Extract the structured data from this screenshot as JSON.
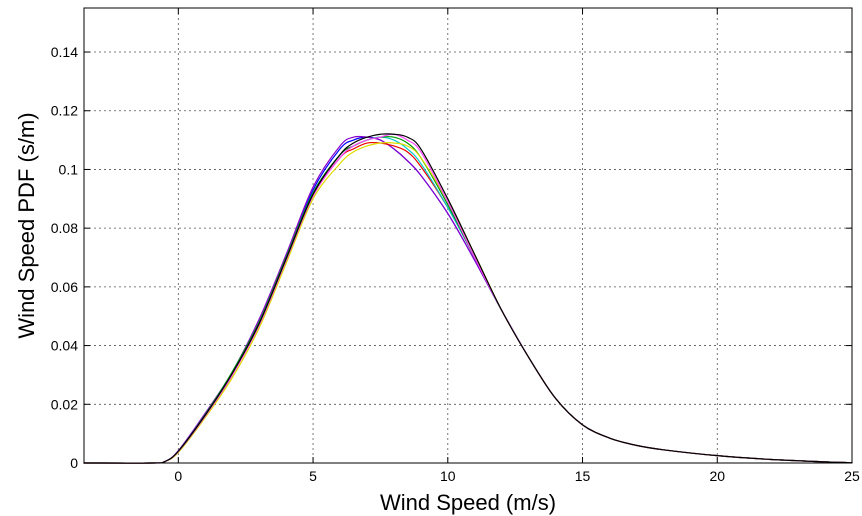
{
  "chart_data": {
    "type": "line",
    "title": "",
    "xlabel": "Wind Speed (m/s)",
    "ylabel": "Wind Speed PDF (s/m)",
    "xlim": [
      -3.5,
      25
    ],
    "ylim": [
      0,
      0.155
    ],
    "x_ticks": [
      0,
      5,
      10,
      15,
      20,
      25
    ],
    "x_tick_labels": [
      "0",
      "5",
      "10",
      "15",
      "20",
      "25"
    ],
    "y_ticks": [
      0,
      0.02,
      0.04,
      0.06,
      0.08,
      0.1,
      0.12,
      0.14
    ],
    "y_tick_labels": [
      "0",
      "0.02",
      "0.04",
      "0.06",
      "0.08",
      "0.1",
      "0.12",
      "0.14"
    ],
    "grid": true,
    "legend": "none",
    "series": [
      {
        "color": "#0000ff",
        "x": [
          -3.5,
          -1,
          -0.5,
          0,
          1,
          2,
          3,
          4,
          5,
          6,
          6.5,
          7,
          7.5,
          8,
          8.5,
          9,
          10,
          11,
          12,
          13,
          14,
          15,
          16,
          17,
          18,
          20,
          22,
          24,
          25
        ],
        "y": [
          0,
          0,
          0.0005,
          0.004,
          0.016,
          0.03,
          0.048,
          0.07,
          0.093,
          0.107,
          0.11,
          0.111,
          0.11,
          0.107,
          0.103,
          0.098,
          0.085,
          0.069,
          0.052,
          0.036,
          0.022,
          0.013,
          0.0085,
          0.006,
          0.0045,
          0.0025,
          0.0012,
          0.0004,
          0.0001
        ]
      },
      {
        "color": "#8800cc",
        "x": [
          -3.5,
          -1,
          -0.5,
          0,
          1,
          2,
          3,
          4,
          5,
          6,
          6.5,
          7,
          7.5,
          8,
          8.5,
          9,
          10,
          11,
          12,
          13,
          14,
          15,
          16,
          17,
          18,
          20,
          22,
          24,
          25
        ],
        "y": [
          0,
          0,
          0.0005,
          0.0042,
          0.017,
          0.031,
          0.049,
          0.071,
          0.094,
          0.108,
          0.111,
          0.111,
          0.11,
          0.107,
          0.103,
          0.098,
          0.085,
          0.069,
          0.052,
          0.036,
          0.022,
          0.013,
          0.0085,
          0.006,
          0.0045,
          0.0025,
          0.0012,
          0.0004,
          0.0001
        ]
      },
      {
        "color": "#ee0000",
        "x": [
          -3.5,
          -1,
          -0.5,
          0,
          1,
          2,
          3,
          4,
          5,
          6,
          6.5,
          7,
          7.5,
          8,
          8.5,
          9,
          10,
          11,
          12,
          13,
          14,
          15,
          16,
          17,
          18,
          20,
          22,
          24,
          25
        ],
        "y": [
          0,
          0,
          0.0005,
          0.0038,
          0.016,
          0.03,
          0.047,
          0.069,
          0.091,
          0.104,
          0.107,
          0.109,
          0.109,
          0.108,
          0.106,
          0.101,
          0.087,
          0.07,
          0.052,
          0.036,
          0.022,
          0.013,
          0.0085,
          0.006,
          0.0045,
          0.0025,
          0.0012,
          0.0004,
          0.0001
        ]
      },
      {
        "color": "#00cccc",
        "x": [
          -3.5,
          -1,
          -0.5,
          0,
          1,
          2,
          3,
          4,
          5,
          6,
          6.5,
          7,
          7.5,
          8,
          8.5,
          9,
          10,
          11,
          12,
          13,
          14,
          15,
          16,
          17,
          18,
          20,
          22,
          24,
          25
        ],
        "y": [
          0,
          0,
          0.0005,
          0.004,
          0.0165,
          0.031,
          0.048,
          0.07,
          0.092,
          0.105,
          0.108,
          0.11,
          0.111,
          0.11,
          0.107,
          0.102,
          0.087,
          0.07,
          0.052,
          0.036,
          0.022,
          0.013,
          0.0085,
          0.006,
          0.0045,
          0.0025,
          0.0012,
          0.0004,
          0.0001
        ]
      },
      {
        "color": "#009900",
        "x": [
          -3.5,
          -1,
          -0.5,
          0,
          1,
          2,
          3,
          4,
          5,
          6,
          6.5,
          7,
          7.5,
          8,
          8.5,
          9,
          10,
          11,
          12,
          13,
          14,
          15,
          16,
          17,
          18,
          20,
          22,
          24,
          25
        ],
        "y": [
          0,
          0,
          0.0005,
          0.004,
          0.0165,
          0.031,
          0.048,
          0.07,
          0.092,
          0.105,
          0.108,
          0.11,
          0.111,
          0.111,
          0.109,
          0.104,
          0.088,
          0.07,
          0.052,
          0.036,
          0.022,
          0.013,
          0.0085,
          0.006,
          0.0045,
          0.0025,
          0.0012,
          0.0004,
          0.0001
        ]
      },
      {
        "color": "#dddd00",
        "x": [
          -3.5,
          -1,
          -0.5,
          0,
          1,
          2,
          3,
          4,
          5,
          6,
          6.5,
          7,
          7.5,
          8,
          8.5,
          9,
          10,
          11,
          12,
          13,
          14,
          15,
          16,
          17,
          18,
          20,
          22,
          24,
          25
        ],
        "y": [
          0,
          0,
          0.0005,
          0.0036,
          0.0155,
          0.029,
          0.046,
          0.068,
          0.09,
          0.102,
          0.106,
          0.108,
          0.109,
          0.109,
          0.108,
          0.104,
          0.089,
          0.071,
          0.052,
          0.036,
          0.022,
          0.013,
          0.0085,
          0.006,
          0.0045,
          0.0025,
          0.0012,
          0.0004,
          0.0001
        ]
      },
      {
        "color": "#ff44ff",
        "x": [
          -3.5,
          -1,
          -0.5,
          0,
          1,
          2,
          3,
          4,
          5,
          6,
          6.5,
          7,
          7.5,
          8,
          8.5,
          9,
          10,
          11,
          12,
          13,
          14,
          15,
          16,
          17,
          18,
          20,
          22,
          24,
          25
        ],
        "y": [
          0,
          0,
          0.0005,
          0.0039,
          0.016,
          0.03,
          0.047,
          0.069,
          0.091,
          0.104,
          0.108,
          0.11,
          0.111,
          0.112,
          0.11,
          0.106,
          0.089,
          0.07,
          0.052,
          0.036,
          0.022,
          0.013,
          0.0085,
          0.006,
          0.0045,
          0.0025,
          0.0012,
          0.0004,
          0.0001
        ]
      },
      {
        "color": "#000000",
        "x": [
          -3.5,
          -1,
          -0.5,
          0,
          1,
          2,
          3,
          4,
          5,
          6,
          6.5,
          7,
          7.5,
          8,
          8.5,
          9,
          10,
          11,
          12,
          13,
          14,
          15,
          16,
          17,
          18,
          20,
          22,
          24,
          25
        ],
        "y": [
          0,
          0,
          0.0005,
          0.004,
          0.0163,
          0.0305,
          0.0475,
          0.0695,
          0.0915,
          0.105,
          0.109,
          0.111,
          0.112,
          0.112,
          0.111,
          0.107,
          0.09,
          0.071,
          0.052,
          0.036,
          0.022,
          0.013,
          0.0085,
          0.006,
          0.0045,
          0.0025,
          0.0012,
          0.0004,
          0.0001
        ]
      }
    ]
  }
}
